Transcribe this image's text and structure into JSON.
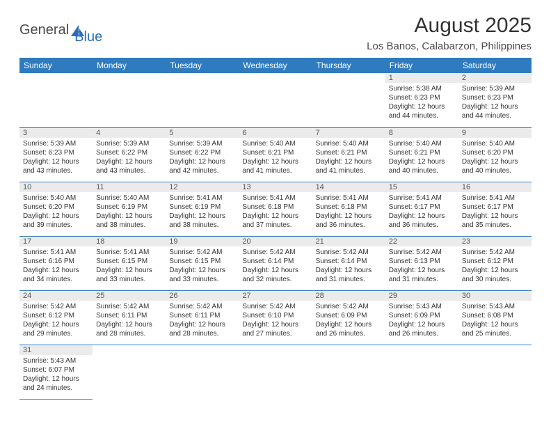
{
  "logo": {
    "text1": "General",
    "text2": "Blue"
  },
  "title": "August 2025",
  "location": "Los Banos, Calabarzon, Philippines",
  "header_bg": "#2f7bbf",
  "weekdays": [
    "Sunday",
    "Monday",
    "Tuesday",
    "Wednesday",
    "Thursday",
    "Friday",
    "Saturday"
  ],
  "weeks": [
    [
      null,
      null,
      null,
      null,
      null,
      {
        "n": "1",
        "sr": "5:38 AM",
        "ss": "6:23 PM",
        "dh": "12",
        "dm": "44"
      },
      {
        "n": "2",
        "sr": "5:39 AM",
        "ss": "6:23 PM",
        "dh": "12",
        "dm": "44"
      }
    ],
    [
      {
        "n": "3",
        "sr": "5:39 AM",
        "ss": "6:23 PM",
        "dh": "12",
        "dm": "43"
      },
      {
        "n": "4",
        "sr": "5:39 AM",
        "ss": "6:22 PM",
        "dh": "12",
        "dm": "43"
      },
      {
        "n": "5",
        "sr": "5:39 AM",
        "ss": "6:22 PM",
        "dh": "12",
        "dm": "42"
      },
      {
        "n": "6",
        "sr": "5:40 AM",
        "ss": "6:21 PM",
        "dh": "12",
        "dm": "41"
      },
      {
        "n": "7",
        "sr": "5:40 AM",
        "ss": "6:21 PM",
        "dh": "12",
        "dm": "41"
      },
      {
        "n": "8",
        "sr": "5:40 AM",
        "ss": "6:21 PM",
        "dh": "12",
        "dm": "40"
      },
      {
        "n": "9",
        "sr": "5:40 AM",
        "ss": "6:20 PM",
        "dh": "12",
        "dm": "40"
      }
    ],
    [
      {
        "n": "10",
        "sr": "5:40 AM",
        "ss": "6:20 PM",
        "dh": "12",
        "dm": "39"
      },
      {
        "n": "11",
        "sr": "5:40 AM",
        "ss": "6:19 PM",
        "dh": "12",
        "dm": "38"
      },
      {
        "n": "12",
        "sr": "5:41 AM",
        "ss": "6:19 PM",
        "dh": "12",
        "dm": "38"
      },
      {
        "n": "13",
        "sr": "5:41 AM",
        "ss": "6:18 PM",
        "dh": "12",
        "dm": "37"
      },
      {
        "n": "14",
        "sr": "5:41 AM",
        "ss": "6:18 PM",
        "dh": "12",
        "dm": "36"
      },
      {
        "n": "15",
        "sr": "5:41 AM",
        "ss": "6:17 PM",
        "dh": "12",
        "dm": "36"
      },
      {
        "n": "16",
        "sr": "5:41 AM",
        "ss": "6:17 PM",
        "dh": "12",
        "dm": "35"
      }
    ],
    [
      {
        "n": "17",
        "sr": "5:41 AM",
        "ss": "6:16 PM",
        "dh": "12",
        "dm": "34"
      },
      {
        "n": "18",
        "sr": "5:41 AM",
        "ss": "6:15 PM",
        "dh": "12",
        "dm": "33"
      },
      {
        "n": "19",
        "sr": "5:42 AM",
        "ss": "6:15 PM",
        "dh": "12",
        "dm": "33"
      },
      {
        "n": "20",
        "sr": "5:42 AM",
        "ss": "6:14 PM",
        "dh": "12",
        "dm": "32"
      },
      {
        "n": "21",
        "sr": "5:42 AM",
        "ss": "6:14 PM",
        "dh": "12",
        "dm": "31"
      },
      {
        "n": "22",
        "sr": "5:42 AM",
        "ss": "6:13 PM",
        "dh": "12",
        "dm": "31"
      },
      {
        "n": "23",
        "sr": "5:42 AM",
        "ss": "6:12 PM",
        "dh": "12",
        "dm": "30"
      }
    ],
    [
      {
        "n": "24",
        "sr": "5:42 AM",
        "ss": "6:12 PM",
        "dh": "12",
        "dm": "29"
      },
      {
        "n": "25",
        "sr": "5:42 AM",
        "ss": "6:11 PM",
        "dh": "12",
        "dm": "28"
      },
      {
        "n": "26",
        "sr": "5:42 AM",
        "ss": "6:11 PM",
        "dh": "12",
        "dm": "28"
      },
      {
        "n": "27",
        "sr": "5:42 AM",
        "ss": "6:10 PM",
        "dh": "12",
        "dm": "27"
      },
      {
        "n": "28",
        "sr": "5:42 AM",
        "ss": "6:09 PM",
        "dh": "12",
        "dm": "26"
      },
      {
        "n": "29",
        "sr": "5:43 AM",
        "ss": "6:09 PM",
        "dh": "12",
        "dm": "26"
      },
      {
        "n": "30",
        "sr": "5:43 AM",
        "ss": "6:08 PM",
        "dh": "12",
        "dm": "25"
      }
    ],
    [
      {
        "n": "31",
        "sr": "5:43 AM",
        "ss": "6:07 PM",
        "dh": "12",
        "dm": "24"
      },
      null,
      null,
      null,
      null,
      null,
      null
    ]
  ]
}
